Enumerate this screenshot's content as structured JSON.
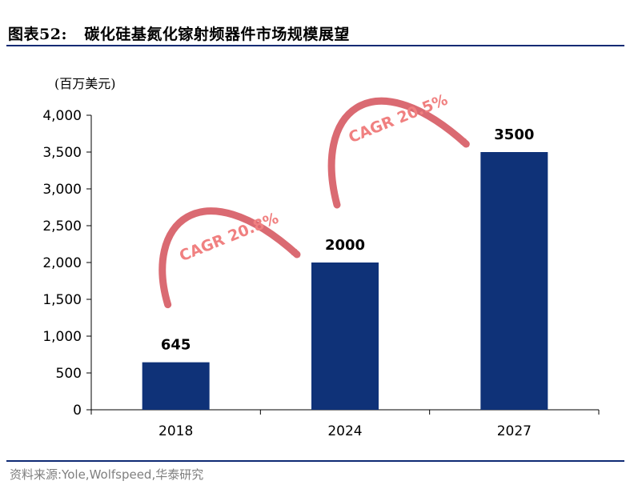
{
  "header": {
    "figure_label": "图表52:",
    "title": "碳化硅基氮化镓射频器件市场规模展望"
  },
  "footer": {
    "source": "资料来源:Yole,Wolfspeed,华泰研究"
  },
  "colors": {
    "bar": "#0f3278",
    "arrow": "#d9636b",
    "cagr_text": "#f08080",
    "rule": "#0f2a74"
  },
  "chart_data": {
    "type": "bar",
    "unit_label": "(百万美元)",
    "categories": [
      "2018",
      "2024",
      "2027"
    ],
    "values": [
      645,
      2000,
      3500
    ],
    "data_labels": [
      "645",
      "2000",
      "3500"
    ],
    "ylim": [
      0,
      4000
    ],
    "yticks": [
      0,
      500,
      1000,
      1500,
      2000,
      2500,
      3000,
      3500,
      4000
    ],
    "ytick_labels": [
      "0",
      "500",
      "1,000",
      "1,500",
      "2,000",
      "2,500",
      "3,000",
      "3,500",
      "4,000"
    ],
    "grid": false,
    "annotations": [
      {
        "text": "CAGR 20.8%",
        "from": "2018",
        "to": "2024"
      },
      {
        "text": "CAGR 20.5%",
        "from": "2024",
        "to": "2027"
      }
    ]
  }
}
